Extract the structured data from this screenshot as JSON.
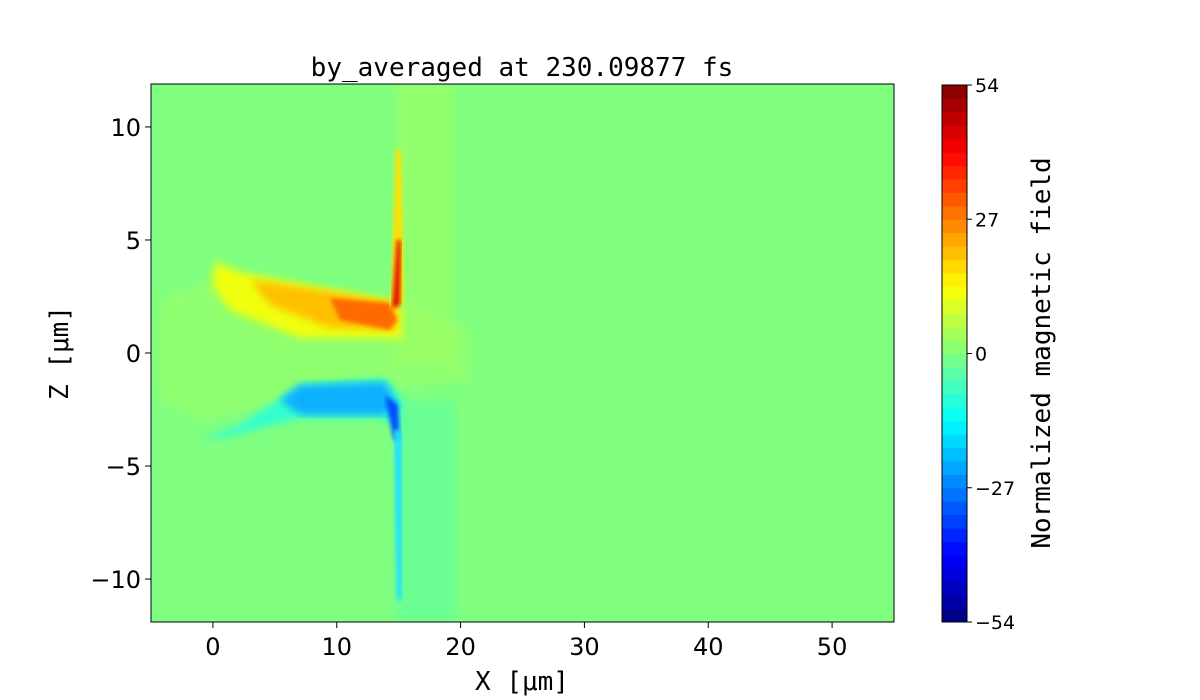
{
  "chart_data": {
    "type": "heatmap",
    "title": "by_averaged at 230.09877 fs",
    "xlabel": "X [μm]",
    "ylabel": "Z [μm]",
    "xlim": [
      -5,
      55
    ],
    "ylim": [
      -11.9,
      11.9
    ],
    "xticks": [
      0,
      10,
      20,
      30,
      40,
      50
    ],
    "xtick_labels": [
      "0",
      "10",
      "20",
      "30",
      "40",
      "50"
    ],
    "yticks": [
      10,
      5,
      0,
      -5,
      -10
    ],
    "ytick_labels": [
      "10",
      "5",
      "0",
      "−5",
      "−10"
    ],
    "colormap": "jet",
    "colorbar": {
      "label": "Normalized magnetic field",
      "range": [
        -54,
        54
      ],
      "ticks": [
        54,
        27,
        0,
        -27,
        -54
      ],
      "tick_labels": [
        "54",
        "27",
        "0",
        "−27",
        "−54"
      ],
      "levels": 40
    },
    "background_color": "#80ff80"
  }
}
